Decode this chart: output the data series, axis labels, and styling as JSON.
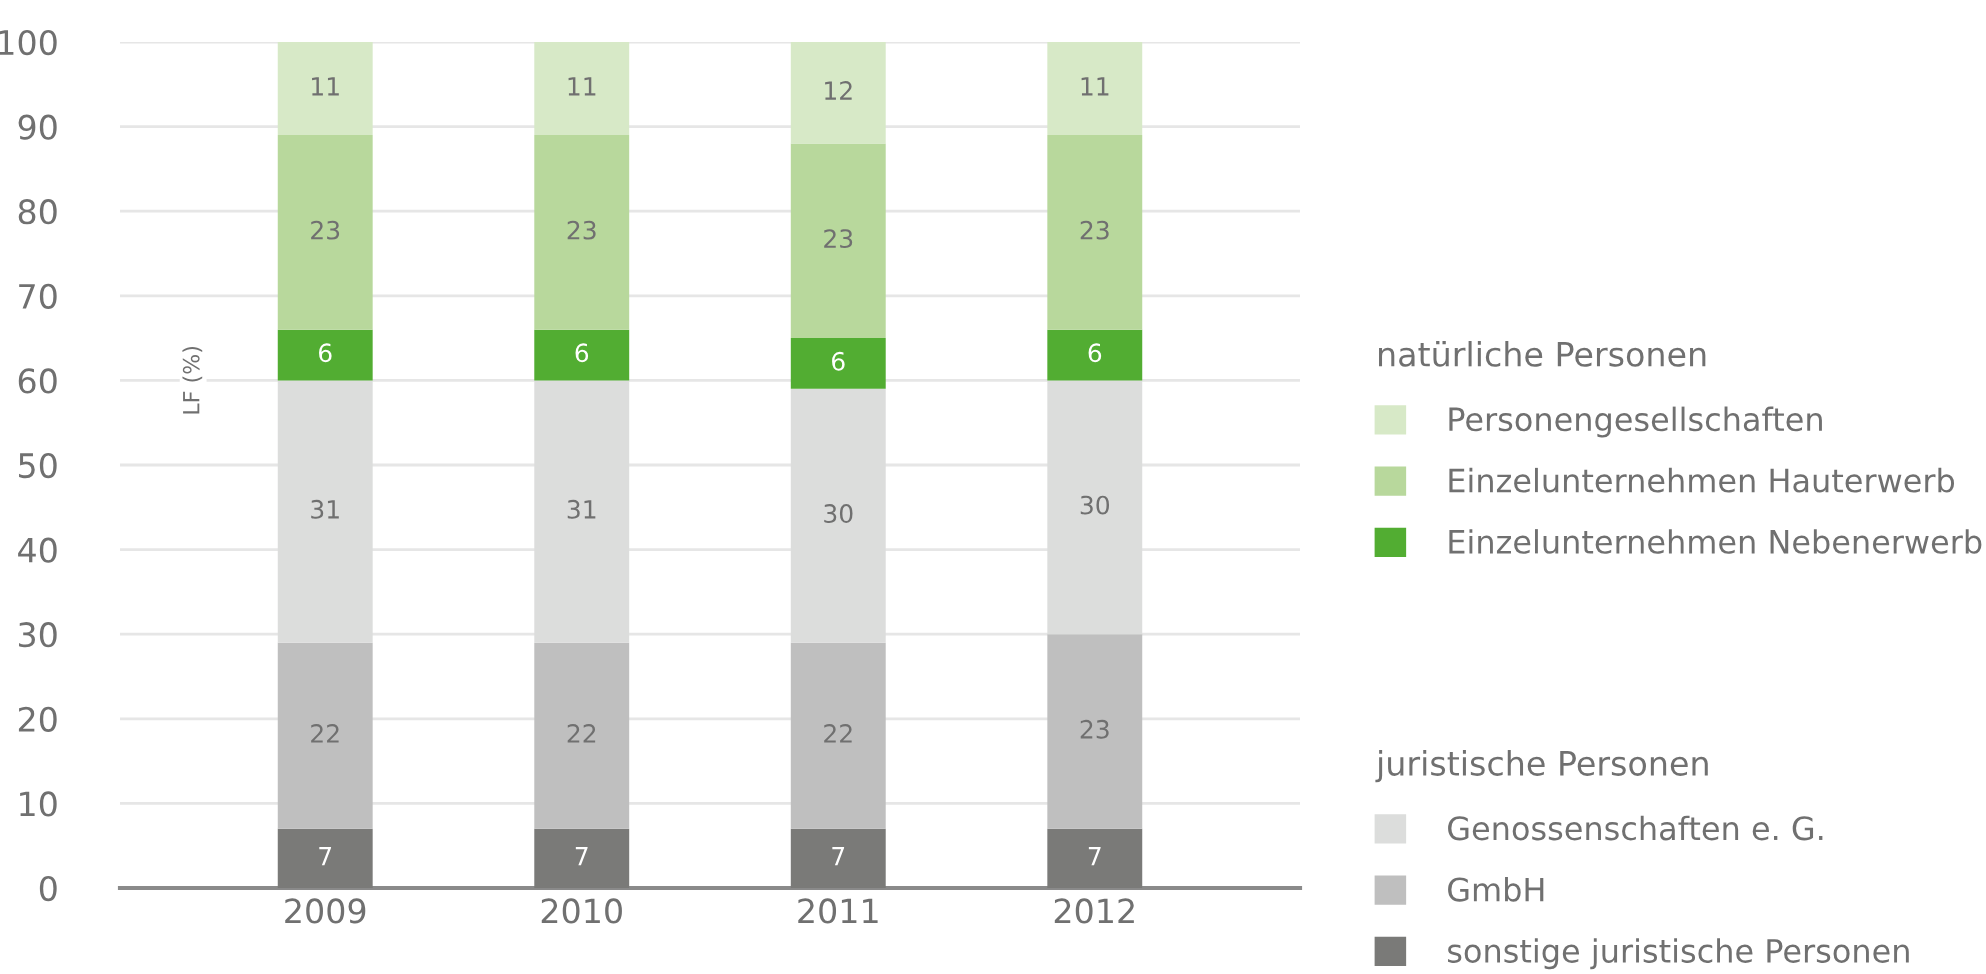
{
  "chart_data": {
    "type": "bar",
    "stacked": true,
    "ylabel": "LF (%)",
    "categories": [
      "2009",
      "2010",
      "2011",
      "2012"
    ],
    "series": [
      {
        "name": "sonstige juristische Personen",
        "color": "#7a7a78",
        "values": [
          7,
          7,
          7,
          7
        ]
      },
      {
        "name": "GmbH",
        "color": "#bfbfbf",
        "values": [
          22,
          22,
          22,
          23
        ]
      },
      {
        "name": "Genossenschaften e. G.",
        "color": "#dcdddc",
        "values": [
          31,
          31,
          30,
          30
        ]
      },
      {
        "name": "Einzelunternehmen Nebenerwerb",
        "color": "#52ad32",
        "values": [
          6,
          6,
          6,
          6
        ]
      },
      {
        "name": "Einzelunternehmen Hauterwerb",
        "color": "#b8d89c",
        "values": [
          23,
          23,
          23,
          23
        ]
      },
      {
        "name": "Personengesellschaften",
        "color": "#d7e9c7",
        "values": [
          11,
          11,
          12,
          11
        ]
      }
    ],
    "ylim": [
      0,
      100
    ],
    "yticks": [
      0,
      10,
      20,
      30,
      40,
      50,
      60,
      70,
      80,
      90,
      100
    ],
    "grid": "y",
    "data_labels": true,
    "legend": "right",
    "annotations": [
      "juristische Personen",
      "natürliche Personen"
    ]
  }
}
